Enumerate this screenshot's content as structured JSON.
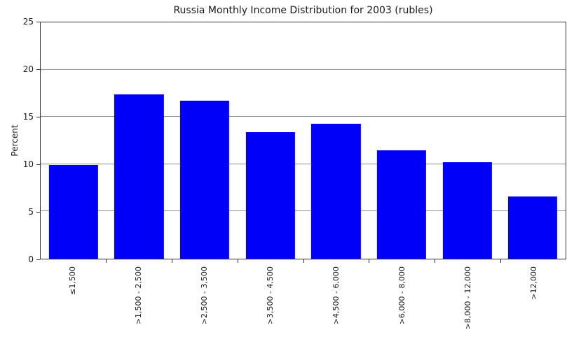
{
  "chart_data": {
    "type": "bar",
    "title": "Russia Monthly Income Distribution for 2003 (rubles)",
    "xlabel": "",
    "ylabel": "Percent",
    "categories": [
      "≤1,500",
      ">1,500 - 2,500",
      ">2,500 - 3,500",
      ">3,500 - 4,500",
      ">4,500 - 6,000",
      ">6,000 - 8,000",
      ">8,000 - 12,000",
      ">12,000"
    ],
    "values": [
      9.9,
      17.4,
      16.7,
      13.4,
      14.3,
      11.5,
      10.2,
      6.6
    ],
    "ylim": [
      0,
      25
    ],
    "yticks": [
      0,
      5,
      10,
      15,
      20,
      25
    ],
    "grid": true,
    "legend": "none",
    "bar_color": "#0000fa",
    "gridline_color": "#8f8f8f",
    "axis_color": "#333333",
    "text_color": "#1a1a1a",
    "background_color": "#ffffff"
  }
}
